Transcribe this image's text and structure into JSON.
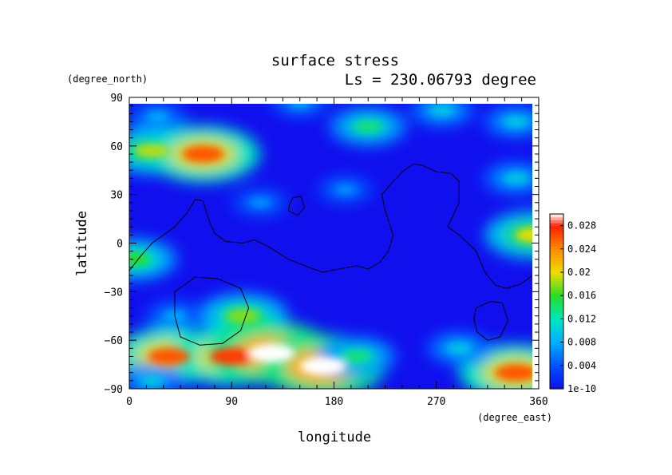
{
  "chart_data": {
    "type": "heatmap",
    "title": "surface stress",
    "subtitle": "Ls = 230.06793 degree",
    "xlabel": "longitude",
    "ylabel": "latitude",
    "x_unit": "(degree_east)",
    "y_unit": "(degree_north)",
    "xlim": [
      0,
      360
    ],
    "ylim": [
      -90,
      90
    ],
    "x_ticks": [
      "0",
      "90",
      "180",
      "270",
      "360"
    ],
    "y_ticks": [
      "90",
      "60",
      "30",
      "0",
      "−30",
      "−60",
      "−90"
    ],
    "x_tick_values": [
      0,
      90,
      180,
      270,
      360
    ],
    "y_tick_values": [
      90,
      60,
      30,
      0,
      -30,
      -60,
      -90
    ],
    "colorbar": {
      "labels": [
        "0.028",
        "0.024",
        "0.02",
        "0.016",
        "0.012",
        "0.008",
        "0.004",
        "1e-10"
      ],
      "label_values": [
        0.028,
        0.024,
        0.02,
        0.016,
        0.012,
        0.008,
        0.004,
        0
      ],
      "range": [
        0,
        0.03
      ]
    },
    "features": [
      {
        "lon": 150,
        "lat": 87,
        "value": 0.008
      },
      {
        "lon": 25,
        "lat": 78,
        "value": 0.008
      },
      {
        "lon": 210,
        "lat": 72,
        "value": 0.014
      },
      {
        "lon": 275,
        "lat": 82,
        "value": 0.01
      },
      {
        "lon": 340,
        "lat": 75,
        "value": 0.01
      },
      {
        "lon": 20,
        "lat": 57,
        "value": 0.019
      },
      {
        "lon": 65,
        "lat": 55,
        "value": 0.026
      },
      {
        "lon": 355,
        "lat": 5,
        "value": 0.02
      },
      {
        "lon": 340,
        "lat": 40,
        "value": 0.01
      },
      {
        "lon": 5,
        "lat": -10,
        "value": 0.016
      },
      {
        "lon": 115,
        "lat": 25,
        "value": 0.007
      },
      {
        "lon": 190,
        "lat": 33,
        "value": 0.007
      },
      {
        "lon": 100,
        "lat": -45,
        "value": 0.018
      },
      {
        "lon": 40,
        "lat": -45,
        "value": 0.008
      },
      {
        "lon": 35,
        "lat": -70,
        "value": 0.026
      },
      {
        "lon": 90,
        "lat": -70,
        "value": 0.027
      },
      {
        "lon": 125,
        "lat": -68,
        "value": 0.03
      },
      {
        "lon": 170,
        "lat": -76,
        "value": 0.03
      },
      {
        "lon": 200,
        "lat": -70,
        "value": 0.014
      },
      {
        "lon": 340,
        "lat": -80,
        "value": 0.026
      },
      {
        "lon": 290,
        "lat": -65,
        "value": 0.01
      },
      {
        "lon": 20,
        "lat": -85,
        "value": 0.01
      }
    ],
    "contours": [
      {
        "name": "coastline",
        "points": [
          [
            0,
            -17
          ],
          [
            10,
            -8
          ],
          [
            20,
            0
          ],
          [
            30,
            5
          ],
          [
            40,
            10
          ],
          [
            50,
            18
          ],
          [
            58,
            27
          ],
          [
            65,
            26
          ],
          [
            70,
            14
          ],
          [
            75,
            6
          ],
          [
            85,
            1
          ],
          [
            100,
            0
          ],
          [
            110,
            2
          ],
          [
            122,
            -2
          ],
          [
            140,
            -10
          ],
          [
            158,
            -15
          ],
          [
            170,
            -18
          ],
          [
            185,
            -16
          ],
          [
            200,
            -14
          ],
          [
            210,
            -16
          ],
          [
            220,
            -12
          ],
          [
            228,
            -5
          ],
          [
            232,
            5
          ],
          [
            225,
            20
          ],
          [
            222,
            30
          ],
          [
            232,
            38
          ],
          [
            240,
            44
          ],
          [
            250,
            49
          ],
          [
            258,
            48
          ],
          [
            270,
            44
          ],
          [
            283,
            43
          ],
          [
            290,
            38
          ],
          [
            290,
            25
          ],
          [
            280,
            10
          ],
          [
            290,
            5
          ],
          [
            305,
            -5
          ],
          [
            312,
            -17
          ],
          [
            315,
            -20
          ],
          [
            322,
            -26
          ],
          [
            332,
            -28
          ],
          [
            345,
            -25
          ],
          [
            360,
            -17
          ]
        ]
      },
      {
        "name": "island",
        "points": [
          [
            140,
            20
          ],
          [
            148,
            17
          ],
          [
            154,
            22
          ],
          [
            151,
            29
          ],
          [
            144,
            28
          ],
          [
            141,
            24
          ],
          [
            140,
            20
          ]
        ]
      },
      {
        "name": "basin-left",
        "points": [
          [
            40,
            -30
          ],
          [
            58,
            -21
          ],
          [
            78,
            -22
          ],
          [
            98,
            -28
          ],
          [
            105,
            -40
          ],
          [
            98,
            -54
          ],
          [
            82,
            -62
          ],
          [
            62,
            -63
          ],
          [
            45,
            -58
          ],
          [
            40,
            -45
          ],
          [
            40,
            -30
          ]
        ]
      },
      {
        "name": "basin-right",
        "points": [
          [
            305,
            -40
          ],
          [
            318,
            -36
          ],
          [
            328,
            -37
          ],
          [
            333,
            -48
          ],
          [
            326,
            -58
          ],
          [
            315,
            -60
          ],
          [
            306,
            -55
          ],
          [
            303,
            -47
          ],
          [
            305,
            -40
          ]
        ]
      }
    ]
  }
}
